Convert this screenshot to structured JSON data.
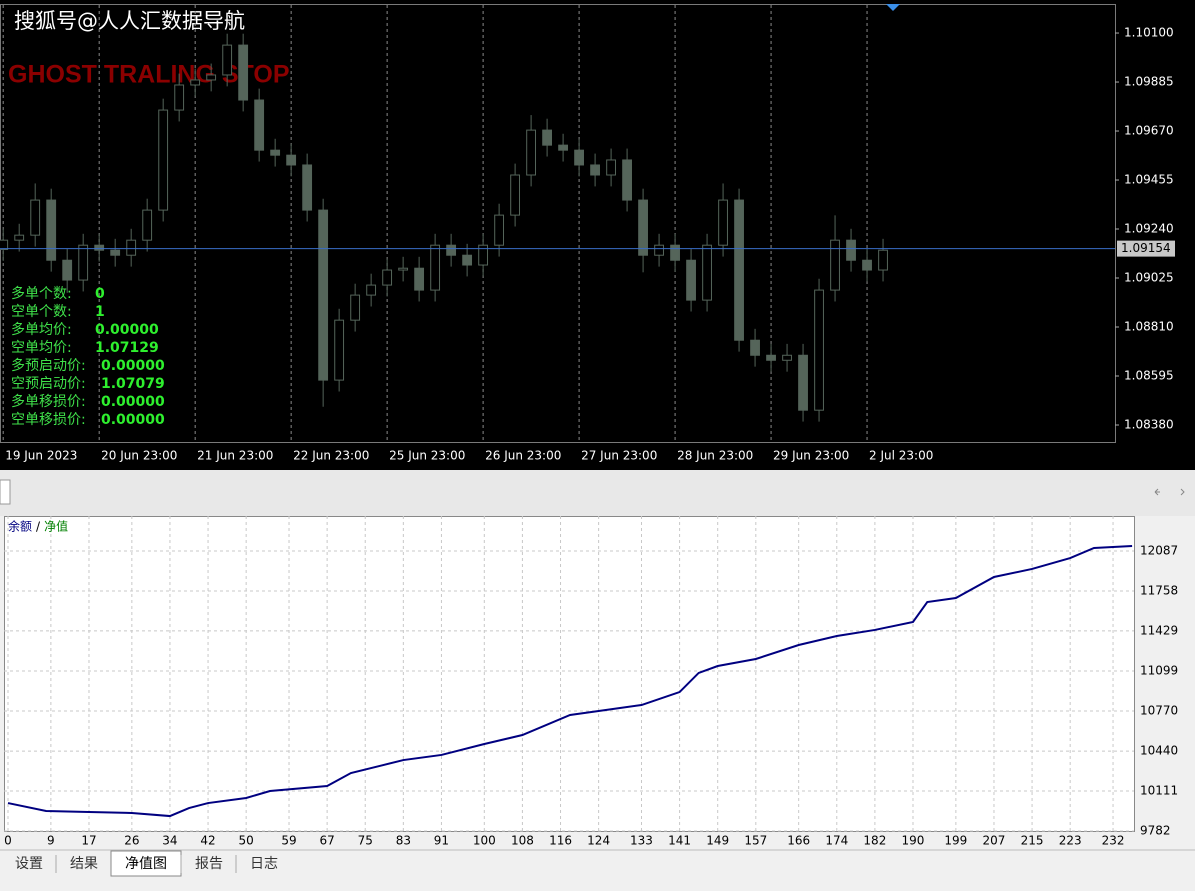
{
  "header": {
    "watermark": "搜狐号@人人汇数据导航",
    "strategy": "GHOST TRALING STOP"
  },
  "info_panel": [
    {
      "label": "多单个数:",
      "value": "0"
    },
    {
      "label": "空单个数:",
      "value": "1"
    },
    {
      "label": "多单均价:",
      "value": "0.00000"
    },
    {
      "label": "空单均价:",
      "value": "1.07129"
    },
    {
      "label": "多预启动价:",
      "value": "0.00000"
    },
    {
      "label": "空预启动价:",
      "value": "1.07079"
    },
    {
      "label": "多单移损价:",
      "value": "0.00000"
    },
    {
      "label": "空单移损价:",
      "value": "0.00000"
    }
  ],
  "chart_data": [
    {
      "type": "candlestick",
      "x": [
        0,
        1,
        2,
        3,
        4,
        5,
        6,
        7,
        8,
        9,
        10,
        11,
        12,
        13,
        14,
        15,
        16,
        17,
        18,
        19,
        20,
        21,
        22,
        23,
        24,
        25,
        26,
        27,
        28,
        29,
        30,
        31,
        32,
        33,
        34,
        35,
        36,
        37,
        38,
        39,
        40,
        41,
        42,
        43,
        44,
        45,
        46,
        47,
        48,
        49,
        50,
        51,
        52,
        53,
        54,
        55
      ],
      "open": [
        1.0915,
        1.09191,
        1.09213,
        1.09367,
        1.09103,
        1.09016,
        1.09169,
        1.09147,
        1.09125,
        1.09191,
        1.09323,
        1.09762,
        1.09872,
        1.09894,
        1.09916,
        1.10047,
        1.09806,
        1.09586,
        1.09564,
        1.09521,
        1.09323,
        1.08577,
        1.0884,
        1.0895,
        1.08994,
        1.0906,
        1.09068,
        1.08972,
        1.09169,
        1.09125,
        1.09082,
        1.09169,
        1.09301,
        1.09477,
        1.09674,
        1.09608,
        1.09586,
        1.09521,
        1.09477,
        1.09543,
        1.09367,
        1.09125,
        1.09169,
        1.09103,
        1.08928,
        1.09169,
        1.09367,
        1.08752,
        1.08686,
        1.08664,
        1.08686,
        1.08445,
        1.08972,
        1.09191,
        1.09103,
        1.0906
      ],
      "high": [
        1.09241,
        1.09263,
        1.0944,
        1.09417,
        1.09153,
        1.09219,
        1.09219,
        1.09197,
        1.09241,
        1.09373,
        1.09812,
        1.09922,
        1.09944,
        1.09966,
        1.10097,
        1.10097,
        1.09856,
        1.09636,
        1.09614,
        1.09571,
        1.09373,
        1.0889,
        1.09,
        1.09044,
        1.0911,
        1.09118,
        1.09118,
        1.09219,
        1.09219,
        1.09175,
        1.09219,
        1.09351,
        1.09527,
        1.0974,
        1.09724,
        1.09658,
        1.09636,
        1.09571,
        1.09593,
        1.09593,
        1.09417,
        1.09219,
        1.09219,
        1.09153,
        1.09219,
        1.0944,
        1.09417,
        1.08802,
        1.08736,
        1.08736,
        1.08736,
        1.09022,
        1.093,
        1.09241,
        1.09153,
        1.09197
      ],
      "low": [
        1.091,
        1.09141,
        1.09163,
        1.09053,
        1.0896,
        1.08966,
        1.09097,
        1.09075,
        1.09075,
        1.09141,
        1.09273,
        1.09712,
        1.09822,
        1.09844,
        1.09866,
        1.09756,
        1.09536,
        1.09514,
        1.09471,
        1.09273,
        1.0846,
        1.08527,
        1.0879,
        1.089,
        1.08944,
        1.0901,
        1.08922,
        1.08922,
        1.09075,
        1.09032,
        1.09032,
        1.09119,
        1.09251,
        1.09427,
        1.09558,
        1.09536,
        1.09471,
        1.09427,
        1.09427,
        1.09317,
        1.0905,
        1.09075,
        1.09053,
        1.08878,
        1.08878,
        1.09119,
        1.08702,
        1.08636,
        1.08614,
        1.08614,
        1.08395,
        1.08395,
        1.08922,
        1.09053,
        1.0901,
        1.0901
      ],
      "close": [
        1.09191,
        1.09213,
        1.09367,
        1.09103,
        1.09016,
        1.09169,
        1.09147,
        1.09125,
        1.09191,
        1.09323,
        1.09762,
        1.09872,
        1.09894,
        1.09916,
        1.10047,
        1.09806,
        1.09586,
        1.09564,
        1.09521,
        1.09323,
        1.08577,
        1.0884,
        1.0895,
        1.08994,
        1.0906,
        1.09068,
        1.08972,
        1.09169,
        1.09125,
        1.09082,
        1.09169,
        1.09301,
        1.09477,
        1.09674,
        1.09608,
        1.09586,
        1.09521,
        1.09477,
        1.09543,
        1.09367,
        1.09125,
        1.09169,
        1.09103,
        1.08928,
        1.09169,
        1.09367,
        1.08752,
        1.08686,
        1.08664,
        1.08686,
        1.08445,
        1.08972,
        1.09191,
        1.09103,
        1.0906,
        1.09147
      ],
      "color": "#55655a",
      "xlim": [
        -0.2,
        69.5
      ],
      "ylim": [
        1.08301,
        1.10223
      ],
      "xticks": [
        {
          "value": 0,
          "label": "19 Jun 2023"
        },
        {
          "value": 6,
          "label": "20 Jun 23:00"
        },
        {
          "value": 12,
          "label": "21 Jun 23:00"
        },
        {
          "value": 18,
          "label": "22 Jun 23:00"
        },
        {
          "value": 24,
          "label": "25 Jun 23:00"
        },
        {
          "value": 30,
          "label": "26 Jun 23:00"
        },
        {
          "value": 36,
          "label": "27 Jun 23:00"
        },
        {
          "value": 42,
          "label": "28 Jun 23:00"
        },
        {
          "value": 48,
          "label": "29 Jun 23:00"
        },
        {
          "value": 54,
          "label": "2 Jul 23:00"
        }
      ],
      "yticks": [
        {
          "value": 1.101,
          "label": "1.10100"
        },
        1.09885,
        {
          "value": 1.0967,
          "label": "1.09670"
        },
        1.09455,
        {
          "value": 1.0924,
          "label": "1.09240"
        },
        1.09025,
        {
          "value": 1.0881,
          "label": "1.08810"
        },
        1.08595,
        {
          "value": 1.0838,
          "label": "1.08380"
        }
      ],
      "current_price": 1.09154,
      "current_price_color": "#3a6ec8"
    },
    {
      "type": "line",
      "x": [
        0,
        8,
        17,
        26,
        34,
        38,
        42,
        50,
        55,
        67,
        72,
        83,
        91,
        100,
        108,
        118,
        124,
        133,
        141,
        145,
        149,
        157,
        166,
        174,
        182,
        190,
        193,
        199,
        207,
        215,
        223,
        228,
        236
      ],
      "series": [
        {
          "name": "余额",
          "color": "#000080",
          "values": [
            10012,
            9947,
            9938,
            9930,
            9905,
            9971,
            10012,
            10054,
            10111,
            10152,
            10259,
            10366,
            10408,
            10498,
            10572,
            10737,
            10770,
            10819,
            10926,
            11083,
            11140,
            11198,
            11313,
            11387,
            11437,
            11503,
            11667,
            11700,
            11873,
            11939,
            12029,
            12112,
            12128
          ]
        }
      ],
      "legend_separator": "/",
      "equity_label": "净值",
      "equity_color": "#008000",
      "xlim": [
        -0.84,
        236.4
      ],
      "ylim": [
        9782,
        12375
      ],
      "xticks": [
        0,
        9,
        17,
        26,
        34,
        42,
        50,
        59,
        67,
        75,
        83,
        91,
        100,
        108,
        116,
        124,
        133,
        141,
        149,
        157,
        166,
        174,
        182,
        190,
        199,
        207,
        215,
        223,
        232
      ],
      "yticks": [
        12087,
        11758,
        11429,
        11099,
        10770,
        10440,
        10111,
        9782
      ],
      "grid": true
    }
  ],
  "tabs": [
    "设置",
    "结果",
    "净值图",
    "报告",
    "日志"
  ],
  "active_tab": 2
}
